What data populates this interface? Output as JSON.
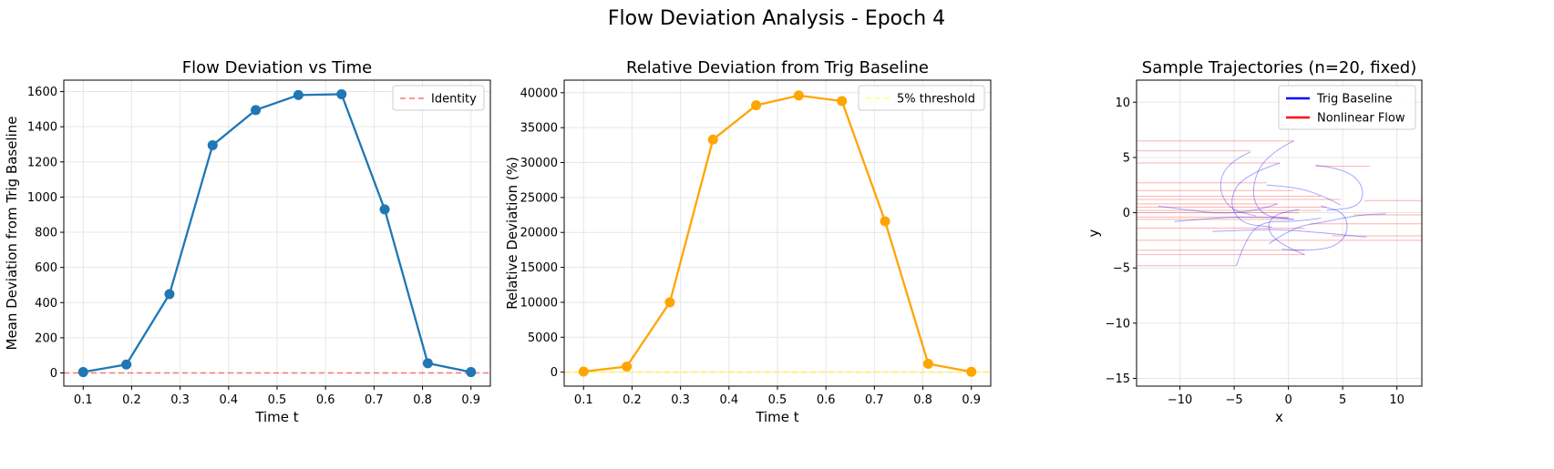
{
  "figure": {
    "suptitle": "Flow Deviation Analysis - Epoch 4"
  },
  "chart_data": [
    {
      "type": "line",
      "title": "Flow Deviation vs Time",
      "xlabel": "Time t",
      "ylabel": "Mean Deviation from Trig Baseline",
      "xlim": [
        0.06,
        0.94
      ],
      "ylim": [
        -75,
        1665
      ],
      "xticks": [
        0.1,
        0.2,
        0.3,
        0.4,
        0.5,
        0.6,
        0.7,
        0.8,
        0.9
      ],
      "xtick_labels": [
        "0.1",
        "0.2",
        "0.3",
        "0.4",
        "0.5",
        "0.6",
        "0.7",
        "0.8",
        "0.9"
      ],
      "yticks": [
        0,
        200,
        400,
        600,
        800,
        1000,
        1200,
        1400,
        1600
      ],
      "ytick_labels": [
        "0",
        "200",
        "400",
        "600",
        "800",
        "1000",
        "1200",
        "1400",
        "1600"
      ],
      "grid": true,
      "legend_position": "upper right",
      "x": [
        0.1,
        0.189,
        0.278,
        0.367,
        0.456,
        0.544,
        0.633,
        0.722,
        0.811,
        0.9
      ],
      "series": [
        {
          "name": "",
          "color": "#1f77b4",
          "style": "solid",
          "markers": true,
          "values": [
            5,
            48,
            448,
            1295,
            1495,
            1580,
            1585,
            930,
            55,
            5
          ]
        }
      ],
      "hlines": [
        {
          "name": "Identity",
          "y": 0,
          "color": "#ff6666",
          "style": "dashed"
        }
      ]
    },
    {
      "type": "line",
      "title": "Relative Deviation from Trig Baseline",
      "xlabel": "Time t",
      "ylabel": "Relative Deviation (%)",
      "xlim": [
        0.06,
        0.94
      ],
      "ylim": [
        -2000,
        41800
      ],
      "xticks": [
        0.1,
        0.2,
        0.3,
        0.4,
        0.5,
        0.6,
        0.7,
        0.8,
        0.9
      ],
      "xtick_labels": [
        "0.1",
        "0.2",
        "0.3",
        "0.4",
        "0.5",
        "0.6",
        "0.7",
        "0.8",
        "0.9"
      ],
      "yticks": [
        0,
        5000,
        10000,
        15000,
        20000,
        25000,
        30000,
        35000,
        40000
      ],
      "ytick_labels": [
        "0",
        "5000",
        "10000",
        "15000",
        "20000",
        "25000",
        "30000",
        "35000",
        "40000"
      ],
      "grid": true,
      "legend_position": "upper right",
      "x": [
        0.1,
        0.189,
        0.278,
        0.367,
        0.456,
        0.544,
        0.633,
        0.722,
        0.811,
        0.9
      ],
      "series": [
        {
          "name": "",
          "color": "#ffa500",
          "style": "solid",
          "markers": true,
          "values": [
            80,
            800,
            10000,
            33300,
            38200,
            39600,
            38800,
            21600,
            1200,
            50
          ]
        }
      ],
      "hlines": [
        {
          "name": "",
          "y": 0,
          "color": "#ffa500",
          "style": "dashed"
        },
        {
          "name": "5% threshold",
          "y": 5,
          "color": "#ffff66",
          "style": "dashed"
        }
      ]
    },
    {
      "type": "line",
      "title": "Sample Trajectories (n=20, fixed)",
      "xlabel": "x",
      "ylabel": "y",
      "xlim": [
        -14,
        12.3
      ],
      "ylim": [
        -15.7,
        12
      ],
      "xticks": [
        -10,
        -5,
        0,
        5,
        10
      ],
      "xtick_labels": [
        "−10",
        "−5",
        "0",
        "5",
        "10"
      ],
      "yticks": [
        10,
        5,
        0,
        -5,
        -10,
        -15
      ],
      "ytick_labels": [
        "10",
        "5",
        "0",
        "−5",
        "−10",
        "−15"
      ],
      "grid": true,
      "legend_position": "upper right",
      "legend": [
        {
          "name": "Trig Baseline",
          "color": "#0000ff"
        },
        {
          "name": "Nonlinear Flow",
          "color": "#ff0000"
        }
      ],
      "trig_baseline": [
        {
          "color": "#0000ff",
          "points": [
            [
              -12,
              0.6
            ],
            [
              -9,
              0.2
            ],
            [
              -6,
              -0.1
            ],
            [
              -3,
              0.2
            ],
            [
              -1,
              0.8
            ]
          ]
        },
        {
          "color": "#0000ff",
          "points": [
            [
              -3.5,
              5.5
            ],
            [
              -5.5,
              4.6
            ],
            [
              -6.5,
              2.5
            ],
            [
              -5.5,
              0.3
            ],
            [
              -3,
              -0.3
            ]
          ]
        },
        {
          "color": "#0000ff",
          "points": [
            [
              0.5,
              6.5
            ],
            [
              -2.2,
              5.2
            ],
            [
              -3.5,
              2.0
            ],
            [
              -2.5,
              -0.3
            ],
            [
              0.5,
              -0.6
            ]
          ]
        },
        {
          "color": "#0000ff",
          "points": [
            [
              -0.8,
              4.5
            ],
            [
              -4.2,
              3.4
            ],
            [
              -5.5,
              1.0
            ],
            [
              -4.4,
              -1.0
            ],
            [
              -1.5,
              -1.3
            ]
          ]
        },
        {
          "color": "#0000ff",
          "points": [
            [
              2.5,
              4.3
            ],
            [
              5.2,
              4.0
            ],
            [
              7.0,
              2.4
            ],
            [
              6.6,
              0.5
            ],
            [
              3.5,
              0.2
            ]
          ]
        },
        {
          "color": "#0000ff",
          "points": [
            [
              -4.8,
              -4.8
            ],
            [
              -4.0,
              -2.5
            ],
            [
              -2.5,
              -0.8
            ],
            [
              0.5,
              -0.8
            ],
            [
              3.0,
              -0.5
            ]
          ]
        },
        {
          "color": "#0000ff",
          "points": [
            [
              1.5,
              -3.8
            ],
            [
              -0.5,
              -3.0
            ],
            [
              -2.0,
              -1.6
            ],
            [
              -1.5,
              -0.2
            ],
            [
              1.0,
              0.3
            ]
          ]
        },
        {
          "color": "#0000ff",
          "points": [
            [
              -0.6,
              -3.3
            ],
            [
              3.2,
              -3.6
            ],
            [
              5.5,
              -2.2
            ],
            [
              5.3,
              0.0
            ],
            [
              3.0,
              0.6
            ]
          ]
        },
        {
          "color": "#0000ff",
          "points": [
            [
              -7.0,
              -1.7
            ],
            [
              -4.5,
              -1.6
            ],
            [
              -1.0,
              -1.5
            ],
            [
              3.0,
              -1.8
            ],
            [
              7.2,
              -2.2
            ]
          ]
        },
        {
          "color": "#0000ff",
          "points": [
            [
              -1.8,
              -2.8
            ],
            [
              0.5,
              -1.3
            ],
            [
              3.0,
              -0.9
            ],
            [
              6.5,
              -0.2
            ],
            [
              9.0,
              -0.1
            ]
          ]
        },
        {
          "color": "#0000ff",
          "points": [
            [
              -2.0,
              2.5
            ],
            [
              -0.5,
              2.4
            ],
            [
              1.5,
              2.1
            ],
            [
              3.4,
              1.4
            ],
            [
              4.8,
              0.7
            ]
          ]
        },
        {
          "color": "#0000ff",
          "points": [
            [
              -10.5,
              -0.8
            ],
            [
              -8.0,
              -0.6
            ],
            [
              -5.5,
              -0.4
            ],
            [
              -3.0,
              -0.4
            ],
            [
              0.0,
              -0.5
            ]
          ]
        }
      ],
      "nonlinear_flow": [
        {
          "color": "#ff0000",
          "y": 6.5,
          "x_from": -14,
          "x_to": 0.5
        },
        {
          "color": "#ff0000",
          "y": 5.6,
          "x_from": -14,
          "x_to": -3.5
        },
        {
          "color": "#ff0000",
          "y": 4.5,
          "x_from": -14,
          "x_to": -0.8
        },
        {
          "color": "#ff0000",
          "y": 4.2,
          "x_from": 2.5,
          "x_to": 7.5
        },
        {
          "color": "#ff0000",
          "y": 2.7,
          "x_from": -14,
          "x_to": -2.0
        },
        {
          "color": "#ff0000",
          "y": 2.0,
          "x_from": -14,
          "x_to": 0.5
        },
        {
          "color": "#ff0000",
          "y": 1.5,
          "x_from": -14,
          "x_to": 3.0
        },
        {
          "color": "#ff0000",
          "y": 1.2,
          "x_from": -14,
          "x_to": 4.8
        },
        {
          "color": "#ff0000",
          "y": 1.1,
          "x_from": 7.0,
          "x_to": 12.3
        },
        {
          "color": "#ff0000",
          "y": 0.8,
          "x_from": -14,
          "x_to": -1.0
        },
        {
          "color": "#ff0000",
          "y": 0.5,
          "x_from": -14,
          "x_to": 3.5
        },
        {
          "color": "#ff0000",
          "y": 0.2,
          "x_from": -14,
          "x_to": 3.0
        },
        {
          "color": "#ff0000",
          "y": 0.0,
          "x_from": -14,
          "x_to": 1.0
        },
        {
          "color": "#ff0000",
          "y": -0.2,
          "x_from": 6.0,
          "x_to": 12.3
        },
        {
          "color": "#ff0000",
          "y": -0.4,
          "x_from": -14,
          "x_to": 0.0
        },
        {
          "color": "#ff0000",
          "y": -0.6,
          "x_from": -14,
          "x_to": 0.5
        },
        {
          "color": "#ff0000",
          "y": -1.0,
          "x_from": 2.0,
          "x_to": 12.3
        },
        {
          "color": "#ff0000",
          "y": -1.4,
          "x_from": -14,
          "x_to": 1.5
        },
        {
          "color": "#ff0000",
          "y": -2.1,
          "x_from": 4.0,
          "x_to": 12.3
        },
        {
          "color": "#ff0000",
          "y": -2.5,
          "x_from": -14,
          "x_to": 12.3
        },
        {
          "color": "#ff0000",
          "y": -3.4,
          "x_from": -14,
          "x_to": 1.5
        },
        {
          "color": "#ff0000",
          "y": -3.8,
          "x_from": -14,
          "x_to": 1.5
        },
        {
          "color": "#ff0000",
          "y": -4.8,
          "x_from": -14,
          "x_to": -4.8
        }
      ]
    }
  ]
}
